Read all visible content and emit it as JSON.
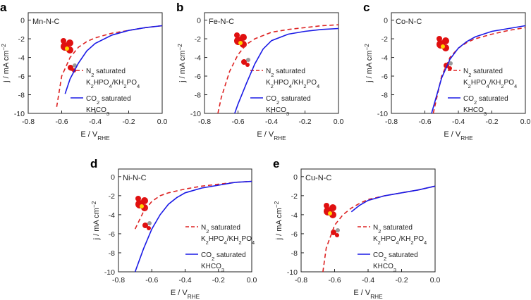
{
  "chart_data": [
    {
      "type": "line",
      "panel": "a",
      "label": "Mn-N-C",
      "label_color": "#33cccc",
      "x_label": [
        {
          "t": "E / V"
        },
        {
          "t": "RHE",
          "sub": true
        }
      ],
      "y_label": [
        {
          "t": "j / mA cm"
        },
        {
          "t": "−2",
          "sup": true
        }
      ],
      "xlim": [
        -0.8,
        0
      ],
      "ylim": [
        -10,
        0.8
      ],
      "xticks": [
        -0.8,
        -0.6,
        -0.4,
        -0.2,
        {
          "value": 0,
          "label": "0.0"
        }
      ],
      "yticks": [
        -10,
        -8,
        -6,
        -4,
        -2,
        0
      ],
      "series": [
        {
          "name": [
            [
              {
                "t": "N"
              },
              {
                "t": "2",
                "sub": true
              },
              {
                "t": " saturated"
              }
            ],
            [
              {
                "t": "K"
              },
              {
                "t": "2",
                "sub": true
              },
              {
                "t": "HPO"
              },
              {
                "t": "4",
                "sub": true
              },
              {
                "t": "/KH"
              },
              {
                "t": "2",
                "sub": true
              },
              {
                "t": "PO"
              },
              {
                "t": "4",
                "sub": true
              }
            ]
          ],
          "color": "#dd2222",
          "dashed": true,
          "x": [
            -0.63,
            -0.6,
            -0.55,
            -0.5,
            -0.45,
            -0.4,
            -0.3,
            -0.2,
            -0.1,
            0
          ],
          "values": [
            -9.3,
            -6,
            -4,
            -2.9,
            -2.3,
            -1.9,
            -1.4,
            -1.1,
            -0.8,
            -0.6
          ]
        },
        {
          "name": [
            [
              {
                "t": "CO"
              },
              {
                "t": "2",
                "sub": true
              },
              {
                "t": " saturated"
              }
            ],
            [
              {
                "t": "KHCO"
              },
              {
                "t": "3",
                "sub": true
              }
            ]
          ],
          "color": "#1a1ae6",
          "dashed": false,
          "x": [
            -0.58,
            -0.55,
            -0.5,
            -0.45,
            -0.4,
            -0.3,
            -0.2,
            -0.1,
            0
          ],
          "values": [
            -7.9,
            -6.3,
            -4.6,
            -3.3,
            -2.5,
            -1.6,
            -1.1,
            -0.8,
            -0.6
          ]
        }
      ]
    },
    {
      "type": "line",
      "panel": "b",
      "label": "Fe-N-C",
      "label_color": "#dd3322",
      "x_label": [
        {
          "t": "E / V"
        },
        {
          "t": "RHE",
          "sub": true
        }
      ],
      "y_label": [
        {
          "t": "j / mA cm"
        },
        {
          "t": "−2",
          "sup": true
        }
      ],
      "xlim": [
        -0.8,
        0
      ],
      "ylim": [
        -10,
        0.8
      ],
      "xticks": [
        -0.8,
        -0.6,
        -0.4,
        -0.2,
        {
          "value": 0,
          "label": "0.0"
        }
      ],
      "yticks": [
        -10,
        -8,
        -6,
        -4,
        -2,
        0
      ],
      "series": [
        {
          "name": [
            [
              {
                "t": "N"
              },
              {
                "t": "2",
                "sub": true
              },
              {
                "t": " saturated"
              }
            ],
            [
              {
                "t": "K"
              },
              {
                "t": "2",
                "sub": true
              },
              {
                "t": "HPO"
              },
              {
                "t": "4",
                "sub": true
              },
              {
                "t": "/KH"
              },
              {
                "t": "2",
                "sub": true
              },
              {
                "t": "PO"
              },
              {
                "t": "4",
                "sub": true
              }
            ]
          ],
          "color": "#dd2222",
          "dashed": true,
          "x": [
            -0.72,
            -0.7,
            -0.65,
            -0.6,
            -0.55,
            -0.5,
            -0.4,
            -0.3,
            -0.2,
            -0.1,
            0
          ],
          "values": [
            -10,
            -8.3,
            -5.5,
            -3.7,
            -2.6,
            -2,
            -1.3,
            -1,
            -0.8,
            -0.6,
            -0.5
          ]
        },
        {
          "name": [
            [
              {
                "t": "CO"
              },
              {
                "t": "2",
                "sub": true
              },
              {
                "t": " saturated"
              }
            ],
            [
              {
                "t": "KHCO"
              },
              {
                "t": "3",
                "sub": true
              }
            ]
          ],
          "color": "#1a1ae6",
          "dashed": false,
          "x": [
            -0.62,
            -0.6,
            -0.55,
            -0.5,
            -0.45,
            -0.4,
            -0.3,
            -0.2,
            -0.1,
            0
          ],
          "values": [
            -10,
            -9,
            -6.8,
            -4.7,
            -3.1,
            -2.2,
            -1.5,
            -1.2,
            -1,
            -0.9
          ]
        }
      ]
    },
    {
      "type": "line",
      "panel": "c",
      "label": "Co-N-C",
      "label_color": "#222222",
      "x_label": [
        {
          "t": "E / V"
        },
        {
          "t": "RHE",
          "sub": true
        }
      ],
      "y_label": [
        {
          "t": "j / mA cm"
        },
        {
          "t": "−2",
          "sup": true
        }
      ],
      "xlim": [
        -0.8,
        0
      ],
      "ylim": [
        -10,
        0.8
      ],
      "xticks": [
        -0.8,
        -0.6,
        -0.4,
        -0.2,
        {
          "value": 0,
          "label": "0.0"
        }
      ],
      "yticks": [
        -10,
        -8,
        -6,
        -4,
        -2,
        0
      ],
      "series": [
        {
          "name": [
            [
              {
                "t": "N"
              },
              {
                "t": "2",
                "sub": true
              },
              {
                "t": " saturated"
              }
            ],
            [
              {
                "t": "K"
              },
              {
                "t": "2",
                "sub": true
              },
              {
                "t": "HPO"
              },
              {
                "t": "4",
                "sub": true
              },
              {
                "t": "/KH"
              },
              {
                "t": "2",
                "sub": true
              },
              {
                "t": "PO"
              },
              {
                "t": "4",
                "sub": true
              }
            ]
          ],
          "color": "#dd2222",
          "dashed": true,
          "x": [
            -0.55,
            -0.5,
            -0.45,
            -0.4,
            -0.35,
            -0.3,
            -0.2,
            -0.1,
            0
          ],
          "values": [
            -10,
            -6,
            -4,
            -3,
            -2.4,
            -2,
            -1.5,
            -1.1,
            -0.8
          ]
        },
        {
          "name": [
            [
              {
                "t": "CO"
              },
              {
                "t": "2",
                "sub": true
              },
              {
                "t": " saturated"
              }
            ],
            [
              {
                "t": "KHCO"
              },
              {
                "t": "3",
                "sub": true
              }
            ]
          ],
          "color": "#1a1ae6",
          "dashed": false,
          "x": [
            -0.56,
            -0.5,
            -0.45,
            -0.4,
            -0.35,
            -0.3,
            -0.2,
            -0.1,
            0
          ],
          "values": [
            -10,
            -6.2,
            -4.2,
            -3,
            -2.3,
            -1.8,
            -1.2,
            -0.9,
            -0.6
          ]
        }
      ]
    },
    {
      "type": "line",
      "panel": "d",
      "label": "Ni-N-C",
      "label_color": "#1a1ae6",
      "x_label": [
        {
          "t": "E / V"
        },
        {
          "t": "RHE",
          "sub": true
        }
      ],
      "y_label": [
        {
          "t": "j / mA cm"
        },
        {
          "t": "−2",
          "sup": true
        }
      ],
      "xlim": [
        -0.8,
        0
      ],
      "ylim": [
        -10,
        0.8
      ],
      "xticks": [
        -0.8,
        -0.6,
        -0.4,
        -0.2,
        {
          "value": 0,
          "label": "0.0"
        }
      ],
      "yticks": [
        -10,
        -8,
        -6,
        -4,
        -2,
        0
      ],
      "series": [
        {
          "name": [
            [
              {
                "t": "N"
              },
              {
                "t": "2",
                "sub": true
              },
              {
                "t": " saturated"
              }
            ],
            [
              {
                "t": "K"
              },
              {
                "t": "2",
                "sub": true
              },
              {
                "t": "HPO"
              },
              {
                "t": "4",
                "sub": true
              },
              {
                "t": "/KH"
              },
              {
                "t": "2",
                "sub": true
              },
              {
                "t": "PO"
              },
              {
                "t": "4",
                "sub": true
              }
            ]
          ],
          "color": "#dd2222",
          "dashed": true,
          "x": [
            -0.7,
            -0.65,
            -0.6,
            -0.55,
            -0.5,
            -0.4,
            -0.3,
            -0.2,
            -0.1,
            0
          ],
          "values": [
            -5.5,
            -3.7,
            -2.6,
            -2,
            -1.7,
            -1.3,
            -1,
            -0.8,
            -0.6,
            -0.5
          ]
        },
        {
          "name": [
            [
              {
                "t": "CO"
              },
              {
                "t": "2",
                "sub": true
              },
              {
                "t": " saturated"
              }
            ],
            [
              {
                "t": "KHCO"
              },
              {
                "t": "3",
                "sub": true
              }
            ]
          ],
          "color": "#1a1ae6",
          "dashed": false,
          "x": [
            -0.7,
            -0.65,
            -0.6,
            -0.55,
            -0.5,
            -0.45,
            -0.4,
            -0.3,
            -0.2,
            -0.1,
            0
          ],
          "values": [
            -10,
            -7.6,
            -5.5,
            -4,
            -2.9,
            -2.2,
            -1.7,
            -1.2,
            -0.9,
            -0.6,
            -0.5
          ]
        }
      ]
    },
    {
      "type": "line",
      "panel": "e",
      "label": "Cu-N-C",
      "label_color": "#8a9a2a",
      "x_label": [
        {
          "t": "E / V"
        },
        {
          "t": "RHE",
          "sub": true
        }
      ],
      "y_label": [
        {
          "t": "j / mA cm"
        },
        {
          "t": "−2",
          "sup": true
        }
      ],
      "xlim": [
        -0.8,
        0
      ],
      "ylim": [
        -10,
        0.8
      ],
      "xticks": [
        -0.8,
        -0.6,
        -0.4,
        -0.2,
        {
          "value": 0,
          "label": "0.0"
        }
      ],
      "yticks": [
        -10,
        -8,
        -6,
        -4,
        -2,
        0
      ],
      "series": [
        {
          "name": [
            [
              {
                "t": "N"
              },
              {
                "t": "2",
                "sub": true
              },
              {
                "t": " saturated"
              }
            ],
            [
              {
                "t": "K"
              },
              {
                "t": "2",
                "sub": true
              },
              {
                "t": "HPO"
              },
              {
                "t": "4",
                "sub": true
              },
              {
                "t": "/KH"
              },
              {
                "t": "2",
                "sub": true
              },
              {
                "t": "PO"
              },
              {
                "t": "4",
                "sub": true
              }
            ]
          ],
          "color": "#dd2222",
          "dashed": true,
          "x": [
            -0.67,
            -0.65,
            -0.6,
            -0.55,
            -0.5,
            -0.45,
            -0.4,
            -0.3,
            -0.2,
            -0.1,
            0
          ],
          "values": [
            -10,
            -7.5,
            -5.1,
            -4,
            -3.3,
            -2.8,
            -2.4,
            -2,
            -1.7,
            -1.4,
            -1
          ]
        },
        {
          "name": [
            [
              {
                "t": "CO"
              },
              {
                "t": "2",
                "sub": true
              },
              {
                "t": " saturated"
              }
            ],
            [
              {
                "t": "KHCO"
              },
              {
                "t": "3",
                "sub": true
              }
            ]
          ],
          "color": "#1a1ae6",
          "dashed": false,
          "x": [
            -0.5,
            -0.45,
            -0.4,
            -0.3,
            -0.2,
            -0.1,
            0
          ],
          "values": [
            -3.7,
            -3,
            -2.5,
            -2,
            -1.7,
            -1.4,
            -1
          ]
        }
      ]
    }
  ]
}
